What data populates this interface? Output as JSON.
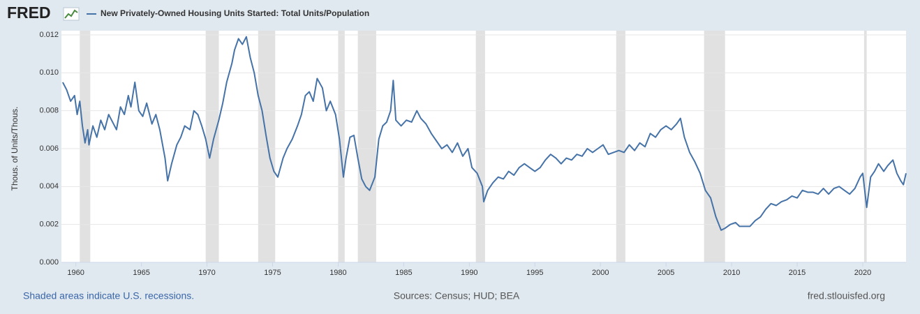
{
  "logo": "FRED",
  "chart_data": {
    "type": "line",
    "ylabel": "Thous. of Units/Thous.",
    "xlim": [
      1958.9,
      2023.3
    ],
    "xticks": [
      1960,
      1965,
      1970,
      1975,
      1980,
      1985,
      1990,
      1995,
      2000,
      2005,
      2010,
      2015,
      2020
    ],
    "ylim": [
      0,
      0.012
    ],
    "yticks": [
      {
        "value": 0,
        "label": "0.000"
      },
      0.002,
      0.004,
      0.006,
      0.008,
      {
        "value": 0.01,
        "label": "0.010"
      },
      0.012
    ],
    "grid": true,
    "recessions": [
      [
        1960.3,
        1961.1
      ],
      [
        1969.9,
        1970.9
      ],
      [
        1973.9,
        1975.2
      ],
      [
        1980.0,
        1980.5
      ],
      [
        1981.5,
        1982.9
      ],
      [
        1990.5,
        1991.2
      ],
      [
        2001.2,
        2001.9
      ],
      [
        2007.9,
        2009.5
      ],
      [
        2020.1,
        2020.3
      ]
    ],
    "recession_color": "#e1e1e1",
    "x": [
      1959.0,
      1959.3,
      1959.6,
      1959.9,
      1960.1,
      1960.3,
      1960.5,
      1960.7,
      1960.9,
      1961.0,
      1961.3,
      1961.6,
      1961.9,
      1962.2,
      1962.5,
      1962.8,
      1963.1,
      1963.4,
      1963.7,
      1964.0,
      1964.2,
      1964.5,
      1964.8,
      1965.1,
      1965.4,
      1965.8,
      1966.1,
      1966.4,
      1966.8,
      1967.0,
      1967.3,
      1967.7,
      1968.0,
      1968.3,
      1968.7,
      1969.0,
      1969.3,
      1969.6,
      1969.9,
      1970.2,
      1970.5,
      1970.9,
      1971.2,
      1971.5,
      1971.9,
      1972.1,
      1972.4,
      1972.7,
      1973.0,
      1973.3,
      1973.6,
      1973.9,
      1974.2,
      1974.5,
      1974.8,
      1975.1,
      1975.4,
      1975.8,
      1976.1,
      1976.5,
      1976.9,
      1977.2,
      1977.5,
      1977.8,
      1978.1,
      1978.4,
      1978.8,
      1979.1,
      1979.4,
      1979.8,
      1980.1,
      1980.4,
      1980.6,
      1980.9,
      1981.2,
      1981.5,
      1981.8,
      1982.1,
      1982.4,
      1982.8,
      1983.1,
      1983.4,
      1983.7,
      1984.0,
      1984.2,
      1984.4,
      1984.8,
      1985.2,
      1985.6,
      1986.0,
      1986.3,
      1986.7,
      1987.1,
      1987.5,
      1987.9,
      1988.3,
      1988.7,
      1989.1,
      1989.5,
      1989.9,
      1990.2,
      1990.6,
      1991.0,
      1991.1,
      1991.4,
      1991.8,
      1992.2,
      1992.6,
      1993.0,
      1993.4,
      1993.8,
      1994.2,
      1994.6,
      1995.0,
      1995.4,
      1995.8,
      1996.2,
      1996.6,
      1997.0,
      1997.4,
      1997.8,
      1998.2,
      1998.6,
      1999.0,
      1999.4,
      1999.8,
      2000.2,
      2000.6,
      2001.0,
      2001.4,
      2001.8,
      2002.2,
      2002.6,
      2003.0,
      2003.4,
      2003.8,
      2004.2,
      2004.6,
      2005.0,
      2005.4,
      2005.8,
      2006.1,
      2006.4,
      2006.8,
      2007.2,
      2007.6,
      2008.0,
      2008.4,
      2008.8,
      2009.2,
      2009.5,
      2009.9,
      2010.3,
      2010.6,
      2011.0,
      2011.4,
      2011.8,
      2012.2,
      2012.6,
      2013.0,
      2013.4,
      2013.8,
      2014.2,
      2014.6,
      2015.0,
      2015.4,
      2015.8,
      2016.2,
      2016.6,
      2017.0,
      2017.4,
      2017.8,
      2018.2,
      2018.6,
      2019.0,
      2019.4,
      2019.8,
      2020.0,
      2020.3,
      2020.6,
      2020.9,
      2021.2,
      2021.6,
      2021.9,
      2022.3,
      2022.6,
      2022.9,
      2023.1,
      2023.3
    ],
    "series": [
      {
        "name": "New Privately-Owned Housing Units Started: Total Units/Population",
        "color": "#4572a7",
        "values": [
          0.0095,
          0.0091,
          0.0085,
          0.0088,
          0.0078,
          0.0085,
          0.0072,
          0.0063,
          0.007,
          0.0062,
          0.0072,
          0.0066,
          0.0075,
          0.007,
          0.0078,
          0.0074,
          0.007,
          0.0082,
          0.0078,
          0.0088,
          0.0082,
          0.0095,
          0.008,
          0.0077,
          0.0084,
          0.0073,
          0.0078,
          0.007,
          0.0055,
          0.0043,
          0.0052,
          0.0062,
          0.0066,
          0.0072,
          0.007,
          0.008,
          0.0078,
          0.0072,
          0.0065,
          0.0055,
          0.0065,
          0.0075,
          0.0084,
          0.0095,
          0.0105,
          0.0112,
          0.0118,
          0.0115,
          0.0119,
          0.0108,
          0.01,
          0.0088,
          0.008,
          0.0067,
          0.0055,
          0.0048,
          0.0045,
          0.0055,
          0.006,
          0.0065,
          0.0072,
          0.0078,
          0.0088,
          0.009,
          0.0085,
          0.0097,
          0.0092,
          0.008,
          0.0085,
          0.0078,
          0.0065,
          0.0045,
          0.0055,
          0.0066,
          0.0067,
          0.0055,
          0.0044,
          0.004,
          0.0038,
          0.0045,
          0.0065,
          0.0072,
          0.0074,
          0.008,
          0.0096,
          0.0075,
          0.0072,
          0.0075,
          0.0074,
          0.008,
          0.0076,
          0.0073,
          0.0068,
          0.0064,
          0.006,
          0.0062,
          0.0058,
          0.0063,
          0.0056,
          0.006,
          0.005,
          0.0047,
          0.004,
          0.0032,
          0.0038,
          0.0042,
          0.0045,
          0.0044,
          0.0048,
          0.0046,
          0.005,
          0.0052,
          0.005,
          0.0048,
          0.005,
          0.0054,
          0.0057,
          0.0055,
          0.0052,
          0.0055,
          0.0054,
          0.0057,
          0.0056,
          0.006,
          0.0058,
          0.006,
          0.0062,
          0.0057,
          0.0058,
          0.0059,
          0.0058,
          0.0062,
          0.0059,
          0.0063,
          0.0061,
          0.0068,
          0.0066,
          0.007,
          0.0072,
          0.007,
          0.0073,
          0.0076,
          0.0066,
          0.0058,
          0.0053,
          0.0047,
          0.0038,
          0.0034,
          0.0024,
          0.0017,
          0.0018,
          0.002,
          0.0021,
          0.0019,
          0.0019,
          0.0019,
          0.0022,
          0.0024,
          0.0028,
          0.0031,
          0.003,
          0.0032,
          0.0033,
          0.0035,
          0.0034,
          0.0038,
          0.0037,
          0.0037,
          0.0036,
          0.0039,
          0.0036,
          0.0039,
          0.004,
          0.0038,
          0.0036,
          0.0039,
          0.0045,
          0.0047,
          0.0029,
          0.0045,
          0.0048,
          0.0052,
          0.0048,
          0.0051,
          0.0054,
          0.0047,
          0.0043,
          0.0041,
          0.0047
        ]
      }
    ]
  },
  "footer": {
    "left": "Shaded areas indicate U.S. recessions.",
    "center": "Sources: Census; HUD; BEA",
    "right": "fred.stlouisfed.org"
  }
}
